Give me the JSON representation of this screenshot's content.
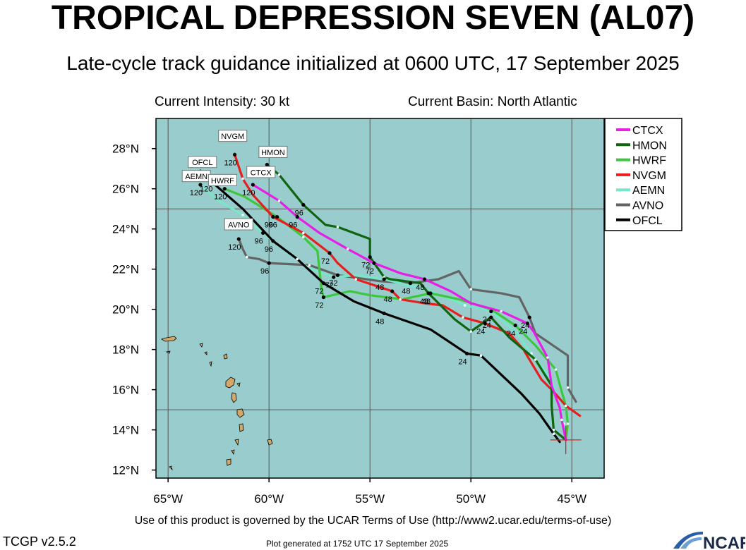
{
  "header": {
    "title": "TROPICAL DEPRESSION SEVEN (AL07)",
    "subtitle": "Late-cycle track guidance initialized at 0600 UTC, 17 September 2025"
  },
  "info": {
    "intensity": "Current Intensity: 30 kt",
    "basin": "Current Basin: North Atlantic"
  },
  "map": {
    "lon_range": [
      -65.6,
      -43.4
    ],
    "lat_range": [
      11.6,
      29.5
    ],
    "lon_ticks": [
      {
        "value": -65,
        "label": "65°W"
      },
      {
        "value": -60,
        "label": "60°W"
      },
      {
        "value": -55,
        "label": "55°W"
      },
      {
        "value": -50,
        "label": "50°W"
      },
      {
        "value": -45,
        "label": "45°W"
      }
    ],
    "lat_ticks": [
      {
        "value": 12,
        "label": "12°N"
      },
      {
        "value": 14,
        "label": "14°N"
      },
      {
        "value": 16,
        "label": "16°N"
      },
      {
        "value": 18,
        "label": "18°N"
      },
      {
        "value": 20,
        "label": "20°N"
      },
      {
        "value": 22,
        "label": "22°N"
      },
      {
        "value": 24,
        "label": "24°N"
      },
      {
        "value": 26,
        "label": "26°N"
      },
      {
        "value": 28,
        "label": "28°N"
      }
    ],
    "major_grid_lon": [
      -65,
      -60,
      -55,
      -50,
      -45
    ],
    "major_grid_lat": [
      15,
      25
    ],
    "minor_grid_lat": [
      12,
      14,
      16,
      18,
      20,
      22,
      24,
      26,
      28
    ],
    "colors": {
      "ocean": "#99cccc",
      "land": "#d2a86a",
      "grid": "#555555"
    },
    "current_position": {
      "lon": -45.3,
      "lat": 13.5
    }
  },
  "chart_data": {
    "type": "line",
    "title": "TROPICAL DEPRESSION SEVEN (AL07)",
    "subtitle": "Late-cycle track guidance initialized at 0600 UTC, 17 September 2025",
    "xlabel": "",
    "ylabel": "",
    "xlim": [
      -65.6,
      -43.4
    ],
    "ylim": [
      11.6,
      29.5
    ],
    "series": [
      {
        "name": "CTCX",
        "color": "#e61ee6",
        "points": [
          [
            -45.3,
            13.5
          ],
          [
            -45.5,
            14.5
          ],
          [
            -45.6,
            15.1
          ],
          [
            -46,
            16.2
          ],
          [
            -46.2,
            17.6
          ],
          [
            -46.9,
            18.9
          ],
          [
            -47.2,
            19.3
          ],
          [
            -48.5,
            19.9
          ],
          [
            -50,
            20.3
          ],
          [
            -51,
            20.9
          ],
          [
            -52.3,
            21.5
          ],
          [
            -53.5,
            21.8
          ],
          [
            -54.8,
            22.3
          ],
          [
            -56.1,
            23
          ],
          [
            -57.5,
            23.8
          ],
          [
            -58.6,
            24.6
          ],
          [
            -59.5,
            25.4
          ],
          [
            -60.3,
            25.9
          ],
          [
            -60.8,
            26.2
          ]
        ],
        "hour_labels": [
          {
            "h": "24",
            "lon": -47.2,
            "lat": 19.3
          },
          {
            "h": "48",
            "lon": -52.3,
            "lat": 21.5
          },
          {
            "h": "72",
            "lon": -54.8,
            "lat": 22.3
          },
          {
            "h": "96",
            "lon": -58.6,
            "lat": 24.6
          },
          {
            "h": "120",
            "lon": -60.8,
            "lat": 26.2
          }
        ]
      },
      {
        "name": "HMON",
        "color": "#0f640f",
        "points": [
          [
            -45.3,
            13.5
          ],
          [
            -45.9,
            14
          ],
          [
            -46,
            15.2
          ],
          [
            -46,
            16.2
          ],
          [
            -46.8,
            17.5
          ],
          [
            -48.1,
            18.6
          ],
          [
            -49,
            19.6
          ],
          [
            -50,
            18.9
          ],
          [
            -50.8,
            19.5
          ],
          [
            -51.5,
            20.2
          ],
          [
            -52.1,
            20.8
          ],
          [
            -52.5,
            21.3
          ],
          [
            -54,
            21.5
          ],
          [
            -54.3,
            21.6
          ],
          [
            -55,
            22.6
          ],
          [
            -55,
            23.5
          ],
          [
            -56.6,
            24.1
          ],
          [
            -57.2,
            24.2
          ],
          [
            -58.3,
            25.2
          ],
          [
            -59.5,
            26.7
          ],
          [
            -60.1,
            27.2
          ]
        ],
        "hour_labels": [
          {
            "h": "24",
            "lon": -49,
            "lat": 19.6
          },
          {
            "h": "48",
            "lon": -52.1,
            "lat": 20.8
          },
          {
            "h": "72",
            "lon": -55,
            "lat": 22.6
          },
          {
            "h": "96",
            "lon": -58.3,
            "lat": 25.2
          },
          {
            "h": "120",
            "lon": -60.1,
            "lat": 27.2
          }
        ]
      },
      {
        "name": "HWRF",
        "color": "#3cc83c",
        "points": [
          [
            -45.3,
            13.5
          ],
          [
            -45.2,
            14.3
          ],
          [
            -45.3,
            15.2
          ],
          [
            -45.5,
            15.9
          ],
          [
            -45.8,
            17
          ],
          [
            -46.8,
            18.2
          ],
          [
            -47.8,
            19.2
          ],
          [
            -49,
            20
          ],
          [
            -50.6,
            20.5
          ],
          [
            -52,
            20.8
          ],
          [
            -53.4,
            20.5
          ],
          [
            -55,
            20.7
          ],
          [
            -56,
            20.9
          ],
          [
            -57.3,
            20.6
          ],
          [
            -57.4,
            21
          ],
          [
            -57.6,
            22.9
          ],
          [
            -58.3,
            23.6
          ],
          [
            -59.6,
            24.6
          ],
          [
            -61.2,
            25.6
          ],
          [
            -62.2,
            26
          ]
        ],
        "hour_labels": [
          {
            "h": "24",
            "lon": -47.8,
            "lat": 19.2
          },
          {
            "h": "48",
            "lon": -52,
            "lat": 20.8
          },
          {
            "h": "72",
            "lon": -57.3,
            "lat": 20.6
          },
          {
            "h": "96",
            "lon": -59.6,
            "lat": 24.6
          },
          {
            "h": "120",
            "lon": -62.2,
            "lat": 26
          }
        ]
      },
      {
        "name": "NVGM",
        "color": "#e61e1e",
        "points": [
          [
            -44.6,
            14.7
          ],
          [
            -45.3,
            15.2
          ],
          [
            -45.9,
            15.9
          ],
          [
            -46.5,
            16.5
          ],
          [
            -47.4,
            18
          ],
          [
            -48.1,
            18.8
          ],
          [
            -49.3,
            19.3
          ],
          [
            -50.4,
            19.6
          ],
          [
            -51.4,
            20.2
          ],
          [
            -52.3,
            20.3
          ],
          [
            -53.5,
            20.5
          ],
          [
            -53.9,
            20.9
          ],
          [
            -54.5,
            21.1
          ],
          [
            -55.7,
            21.5
          ],
          [
            -56.6,
            22.3
          ],
          [
            -57,
            22.8
          ],
          [
            -58.3,
            23.8
          ],
          [
            -59.8,
            24.6
          ],
          [
            -60.8,
            25.7
          ],
          [
            -61.3,
            26.5
          ],
          [
            -61.7,
            27.7
          ]
        ],
        "hour_labels": [
          {
            "h": "24",
            "lon": -49.3,
            "lat": 19.3
          },
          {
            "h": "48",
            "lon": -53.9,
            "lat": 20.9
          },
          {
            "h": "72",
            "lon": -57,
            "lat": 22.8
          },
          {
            "h": "96",
            "lon": -59.8,
            "lat": 24.6
          },
          {
            "h": "120",
            "lon": -61.7,
            "lat": 27.7
          }
        ]
      },
      {
        "name": "AEMN",
        "color": "#78e6c8",
        "points": [
          [
            -45.3,
            13.5
          ],
          [
            -45.4,
            14.3
          ],
          [
            -45.7,
            15.5
          ],
          [
            -46,
            16.5
          ],
          [
            -47,
            17.8
          ],
          [
            -47.7,
            18.8
          ],
          [
            -49,
            19.9
          ],
          [
            -50.3,
            20.2
          ],
          [
            -51,
            20.5
          ],
          [
            -52.3,
            21
          ],
          [
            -54.3,
            21.5
          ],
          [
            -55.7,
            21.7
          ],
          [
            -56.8,
            21.6
          ],
          [
            -58.1,
            22.1
          ],
          [
            -59.3,
            23
          ],
          [
            -60.3,
            23.8
          ],
          [
            -61.3,
            24.7
          ],
          [
            -62.5,
            25.4
          ],
          [
            -63.4,
            26.2
          ]
        ],
        "hour_labels": [
          {
            "h": "24",
            "lon": -49,
            "lat": 19.9
          },
          {
            "h": "48",
            "lon": -54.3,
            "lat": 21.5
          },
          {
            "h": "72",
            "lon": -56.8,
            "lat": 21.6
          },
          {
            "h": "96",
            "lon": -60.3,
            "lat": 23.8
          },
          {
            "h": "120",
            "lon": -63.4,
            "lat": 26.2
          }
        ]
      },
      {
        "name": "AVNO",
        "color": "#646464",
        "points": [
          [
            -44.8,
            15.4
          ],
          [
            -45.2,
            16.1
          ],
          [
            -45.2,
            17.7
          ],
          [
            -46.8,
            18.8
          ],
          [
            -47.1,
            19.6
          ],
          [
            -47.6,
            20.6
          ],
          [
            -48.5,
            20.8
          ],
          [
            -50,
            21
          ],
          [
            -50.6,
            21.9
          ],
          [
            -51.6,
            21.5
          ],
          [
            -53,
            21.3
          ],
          [
            -54.5,
            21.4
          ],
          [
            -56.6,
            21.7
          ],
          [
            -58,
            22.2
          ],
          [
            -60,
            22.3
          ],
          [
            -60.5,
            22.5
          ],
          [
            -61.1,
            22.6
          ],
          [
            -61.3,
            23
          ],
          [
            -61.5,
            23.5
          ]
        ],
        "hour_labels": [
          {
            "h": "24",
            "lon": -47.1,
            "lat": 19.6
          },
          {
            "h": "48",
            "lon": -53,
            "lat": 21.3
          },
          {
            "h": "72",
            "lon": -56.6,
            "lat": 21.7
          },
          {
            "h": "96",
            "lon": -60,
            "lat": 22.3
          },
          {
            "h": "120",
            "lon": -61.5,
            "lat": 23.5
          }
        ]
      },
      {
        "name": "OFCL",
        "color": "#000000",
        "points": [
          [
            -45.6,
            13.4
          ],
          [
            -45.9,
            13.8
          ],
          [
            -46.6,
            14.8
          ],
          [
            -47.5,
            15.8
          ],
          [
            -49.5,
            17.7
          ],
          [
            -50.2,
            17.8
          ],
          [
            -52,
            19
          ],
          [
            -54.3,
            19.8
          ],
          [
            -55.8,
            20.4
          ],
          [
            -57.3,
            21.3
          ],
          [
            -58.6,
            22.5
          ],
          [
            -59.8,
            23.4
          ],
          [
            -61.3,
            25
          ],
          [
            -62.9,
            26.4
          ],
          [
            -63.4,
            26.9
          ]
        ],
        "hour_labels": [
          {
            "h": "24",
            "lon": -50.2,
            "lat": 17.8
          },
          {
            "h": "48",
            "lon": -54.3,
            "lat": 19.8
          },
          {
            "h": "72",
            "lon": -57.3,
            "lat": 21.3
          },
          {
            "h": "96",
            "lon": -59.8,
            "lat": 23.4
          },
          {
            "h": "120",
            "lon": -62.9,
            "lat": 26.4
          }
        ]
      }
    ],
    "end_labels": [
      {
        "name": "OFCL",
        "lon": -63.3,
        "lat": 27.3
      },
      {
        "name": "AEMN",
        "lon": -63.6,
        "lat": 26.6
      },
      {
        "name": "HWRF",
        "lon": -62.3,
        "lat": 26.4
      },
      {
        "name": "NVGM",
        "lon": -61.8,
        "lat": 28.6
      },
      {
        "name": "HMON",
        "lon": -59.8,
        "lat": 27.8
      },
      {
        "name": "CTCX",
        "lon": -60.4,
        "lat": 26.8
      },
      {
        "name": "AVNO",
        "lon": -61.5,
        "lat": 24.2
      }
    ],
    "legend": "top-right"
  },
  "footer": {
    "terms": "Use of this product is governed by the UCAR Terms of Use (http://www2.ucar.edu/terms-of-use)",
    "version": "TCGP v2.5.2",
    "generated": "Plot generated at 1752 UTC   17 September 2025",
    "logo_text": "NCAR"
  }
}
